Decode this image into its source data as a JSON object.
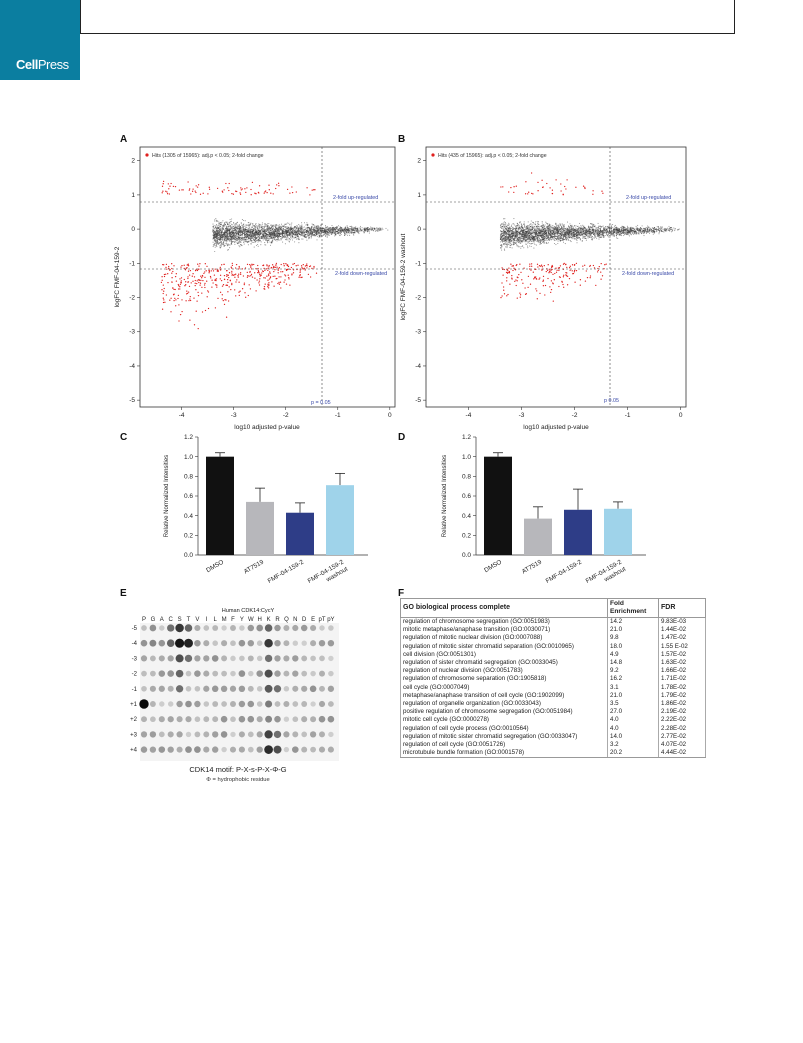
{
  "header": {
    "brand_bold": "Cell",
    "brand_regular": "Press"
  },
  "panels": {
    "A": "A",
    "B": "B",
    "C": "C",
    "D": "D",
    "E": "E",
    "F": "F"
  },
  "volcano_a": {
    "legend": "Hits (1305 of 15965): adj.p < 0.05; 2-fold change",
    "ylabel": "logFC FMF-04-159-2",
    "xlabel": "log10 adjusted p-value",
    "up_label": "2-fold up-regulated",
    "down_label": "2-fold down-regulated",
    "p_label": "p = 0.05",
    "xticks": [
      "-4",
      "-3",
      "-2",
      "-1",
      "0"
    ],
    "yticks": [
      "2",
      "1",
      "0",
      "-1",
      "-2",
      "-3",
      "-4",
      "-5"
    ]
  },
  "volcano_b": {
    "legend": "Hits (435 of 15965): adj.p < 0.05; 2-fold change",
    "ylabel": "logFC FMF-04-159-2 washout",
    "xlabel": "log10 adjusted p-value",
    "up_label": "2-fold up-regulated",
    "down_label": "2-fold down-regulated",
    "p_label": "p 0.05",
    "xticks": [
      "-4",
      "-3",
      "-2",
      "-1",
      "0"
    ],
    "yticks": [
      "2",
      "1",
      "0",
      "-1",
      "-2",
      "-3",
      "-4",
      "-5"
    ]
  },
  "chart_data": [
    {
      "type": "scatter",
      "title": "",
      "xlabel": "log10 adjusted p-value",
      "ylabel": "logFC FMF-04-159-2",
      "xlim": [
        -4.8,
        0.1
      ],
      "ylim": [
        -5.2,
        2.4
      ],
      "legend": "Hits (1305 of 15965): adj.p < 0.05; 2-fold change",
      "thresholds": {
        "logfc_up": 1,
        "logfc_down": -1,
        "log10_p": -1.3
      }
    },
    {
      "type": "scatter",
      "title": "",
      "xlabel": "log10 adjusted p-value",
      "ylabel": "logFC FMF-04-159-2 washout",
      "xlim": [
        -4.8,
        0.1
      ],
      "ylim": [
        -5.2,
        2.4
      ],
      "legend": "Hits (435 of 15965): adj.p < 0.05; 2-fold change",
      "thresholds": {
        "logfc_up": 1,
        "logfc_down": -1,
        "log10_p": -1.3
      }
    },
    {
      "type": "bar",
      "categories": [
        "DMSO",
        "AT7519",
        "FMF-04-159-2",
        "FMF-04-159-2 washout"
      ],
      "values": [
        1.0,
        0.54,
        0.43,
        0.71
      ],
      "errors": [
        0.04,
        0.14,
        0.1,
        0.12
      ],
      "colors": [
        "#111111",
        "#b7b7bb",
        "#2e3d87",
        "#9fd3ea"
      ],
      "ylabel": "Relative Normalized Intensities",
      "ylim": [
        0,
        1.2
      ],
      "yticks": [
        "0.0",
        "0.2",
        "0.4",
        "0.6",
        "0.8",
        "1.0",
        "1.2"
      ]
    },
    {
      "type": "bar",
      "categories": [
        "DMSO",
        "AT7519",
        "FMF-04-159-2",
        "FMF-04-159-2 washout"
      ],
      "values": [
        1.0,
        0.37,
        0.46,
        0.47
      ],
      "errors": [
        0.04,
        0.12,
        0.21,
        0.07
      ],
      "colors": [
        "#111111",
        "#b7b7bb",
        "#2e3d87",
        "#9fd3ea"
      ],
      "ylabel": "Relative Normalized Intensities",
      "ylim": [
        0,
        1.2
      ],
      "yticks": [
        "0.0",
        "0.2",
        "0.4",
        "0.6",
        "0.8",
        "1.0",
        "1.2"
      ]
    }
  ],
  "bar_axis": {
    "ylabel": "Relative Normalized Intensities",
    "yticks": [
      "0.0",
      "0.2",
      "0.4",
      "0.6",
      "0.8",
      "1.0",
      "1.2"
    ],
    "xlabels": [
      "DMSO",
      "AT7519",
      "FMF-04-159-2",
      "FMF-04-159-2"
    ],
    "washout": "washout"
  },
  "blot": {
    "title": "Human CDK14:CycY",
    "columns": [
      "P",
      "G",
      "A",
      "C",
      "S",
      "T",
      "V",
      "I",
      "L",
      "M",
      "F",
      "Y",
      "W",
      "H",
      "K",
      "R",
      "Q",
      "N",
      "D",
      "E",
      "pT",
      "pY"
    ],
    "rows": [
      "-5",
      "-4",
      "-3",
      "-2",
      "-1",
      "+1",
      "+2",
      "+3",
      "+4"
    ],
    "motif": "CDK14 motif: P-X-s-P-X-Φ-G",
    "note": "Φ = hydrophobic residue"
  },
  "go_table": {
    "headers": [
      "GO biological process complete",
      "Fold Enrichment",
      "FDR"
    ],
    "rows": [
      {
        "term": "regulation of chromosome segregation (GO:0051983)",
        "fold": "14.2",
        "fdr": "9.83E-03"
      },
      {
        "term": "mitotic metaphase/anaphase transition (GO:0030071)",
        "fold": "21.0",
        "fdr": "1.44E-02"
      },
      {
        "term": "regulation of mitotic nuclear division (GO:0007088)",
        "fold": "9.8",
        "fdr": "1.47E-02"
      },
      {
        "term": "regulation of mitotic sister chromatid separation (GO:0010965)",
        "fold": "18.0",
        "fdr": "1.55 E-02"
      },
      {
        "term": "cell division (GO:0051301)",
        "fold": "4.9",
        "fdr": "1.57E-02"
      },
      {
        "term": "regulation of sister chromatid segregation (GO:0033045)",
        "fold": "14.8",
        "fdr": "1.63E-02"
      },
      {
        "term": "regulation of nuclear division (GO:0051783)",
        "fold": "9.2",
        "fdr": "1.66E-02"
      },
      {
        "term": "regulation of chromosome separation (GO:1905818)",
        "fold": "16.2",
        "fdr": "1.71E-02"
      },
      {
        "term": "cell cycle (GO:0007049)",
        "fold": "3.1",
        "fdr": "1.78E-02"
      },
      {
        "term": "metaphase/anaphase transition of cell cycle (GO:1902099)",
        "fold": "21.0",
        "fdr": "1.79E-02"
      },
      {
        "term": "regulation of organelle organization (GO:0033043)",
        "fold": "3.5",
        "fdr": "1.86E-02"
      },
      {
        "term": "positive regulation of chromosome segregation (GO:0051984)",
        "fold": "27.0",
        "fdr": "2.19E-02"
      },
      {
        "term": "mitotic cell cycle (GO:0000278)",
        "fold": "4.0",
        "fdr": "2.22E-02"
      },
      {
        "term": "regulation of cell cycle process (GO:0010564)",
        "fold": "4.0",
        "fdr": "2.28E-02"
      },
      {
        "term": "regulation of mitotic sister chromatid segregation (GO:0033047)",
        "fold": "14.0",
        "fdr": "2.77E-02"
      },
      {
        "term": "regulation of cell cycle (GO:0051726)",
        "fold": "3.2",
        "fdr": "4.07E-02"
      },
      {
        "term": "microtubule bundle formation (GO:0001578)",
        "fold": "20.2",
        "fdr": "4.44E-02"
      }
    ]
  }
}
